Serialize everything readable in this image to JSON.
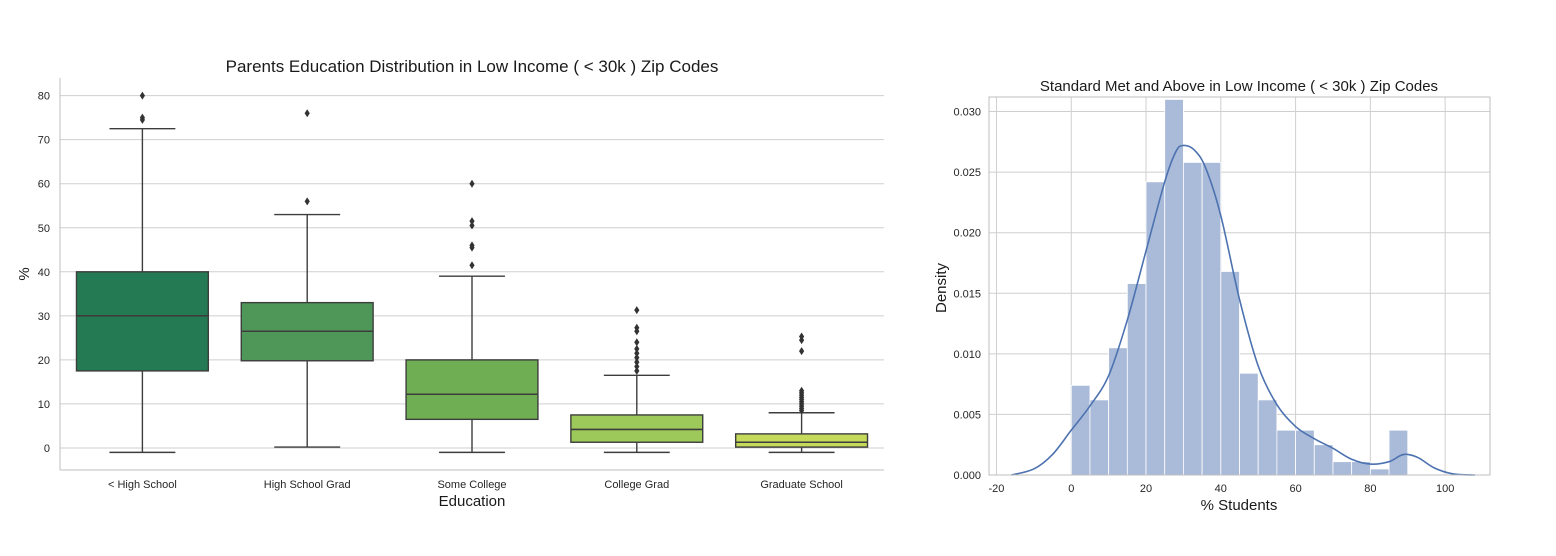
{
  "chart_data": [
    {
      "type": "box",
      "title": "Parents Education Distribution in Low Income ( < 30k ) Zip Codes",
      "xlabel": "Education",
      "ylabel": "%",
      "ylim": [
        -5,
        84
      ],
      "yticks": [
        0,
        10,
        20,
        30,
        40,
        50,
        60,
        70,
        80
      ],
      "grid": "horizontal",
      "categories": [
        "< High School",
        "High School Grad",
        "Some College",
        "College Grad",
        "Graduate School"
      ],
      "colors": [
        "#247a52",
        "#4e9759",
        "#6fae52",
        "#9cc95a",
        "#c5d95a"
      ],
      "boxes": [
        {
          "whisker_low": -1,
          "q1": 17.5,
          "median": 30,
          "q3": 40,
          "whisker_high": 72.5,
          "outliers": [
            74.5,
            75,
            80
          ]
        },
        {
          "whisker_low": 0.2,
          "q1": 19.8,
          "median": 26.5,
          "q3": 33,
          "whisker_high": 53,
          "outliers": [
            56,
            76
          ]
        },
        {
          "whisker_low": -1,
          "q1": 6.5,
          "median": 12.2,
          "q3": 20,
          "whisker_high": 39,
          "outliers": [
            41.5,
            45.5,
            46,
            50.5,
            51.5,
            60
          ]
        },
        {
          "whisker_low": -1,
          "q1": 1.3,
          "median": 4.2,
          "q3": 7.5,
          "whisker_high": 16.5,
          "outliers": [
            17.5,
            18.5,
            19.5,
            20.5,
            21.5,
            22.5,
            24,
            26.5,
            27.3,
            31.3
          ]
        },
        {
          "whisker_low": -1,
          "q1": 0.2,
          "median": 1.3,
          "q3": 3.2,
          "whisker_high": 8,
          "outliers": [
            8.5,
            9,
            9.5,
            10,
            10.5,
            11,
            11.5,
            12,
            12.5,
            13,
            22,
            24.5,
            25.3
          ]
        }
      ]
    },
    {
      "type": "histogram",
      "title": "Standard Met and Above in Low Income ( < 30k ) Zip Codes",
      "xlabel": "% Students",
      "ylabel": "Density",
      "xlim": [
        -22,
        112
      ],
      "ylim": [
        0,
        0.0312
      ],
      "xticks": [
        -20,
        0,
        20,
        40,
        60,
        80,
        100
      ],
      "yticks": [
        0.0,
        0.005,
        0.01,
        0.015,
        0.02,
        0.025,
        0.03
      ],
      "ytick_labels": [
        "0.000",
        "0.005",
        "0.010",
        "0.015",
        "0.020",
        "0.025",
        "0.030"
      ],
      "grid": "both",
      "bar_color": "#aabbd9",
      "kde_color": "#4c72b0",
      "bin_edges": [
        0,
        5,
        10,
        15,
        20,
        25,
        30,
        35,
        40,
        45,
        50,
        55,
        60,
        65,
        70,
        75,
        80,
        85,
        90
      ],
      "densities": [
        0.0074,
        0.0062,
        0.0105,
        0.0158,
        0.0242,
        0.031,
        0.0258,
        0.0258,
        0.0168,
        0.0084,
        0.0062,
        0.0037,
        0.0037,
        0.0025,
        0.0011,
        0.0011,
        0.0005,
        0.0037
      ],
      "kde_x": [
        -16,
        -10,
        -5,
        0,
        5,
        10,
        15,
        20,
        25,
        28,
        30,
        33,
        36,
        40,
        45,
        50,
        55,
        60,
        65,
        70,
        75,
        80,
        85,
        88,
        90,
        93,
        97,
        102,
        108
      ],
      "kde_y": [
        0.0,
        0.0005,
        0.0017,
        0.0037,
        0.0057,
        0.0082,
        0.0128,
        0.0185,
        0.0242,
        0.0267,
        0.0272,
        0.0268,
        0.0253,
        0.0214,
        0.0145,
        0.009,
        0.0058,
        0.004,
        0.003,
        0.0022,
        0.0013,
        0.0009,
        0.0011,
        0.0016,
        0.0017,
        0.0014,
        0.0006,
        0.0001,
        0.0
      ]
    }
  ]
}
